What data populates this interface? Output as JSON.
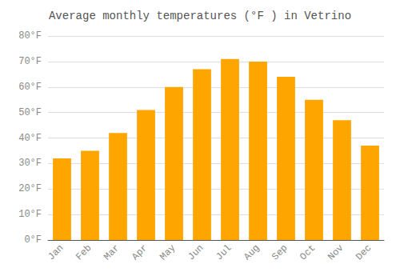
{
  "chart_data": {
    "type": "bar",
    "title": "Average monthly temperatures (°F ) in Vetrino",
    "categories": [
      "Jan",
      "Feb",
      "Mar",
      "Apr",
      "May",
      "Jun",
      "Jul",
      "Aug",
      "Sep",
      "Oct",
      "Nov",
      "Dec"
    ],
    "values": [
      32,
      35,
      42,
      51,
      60,
      67,
      71,
      70,
      64,
      55,
      47,
      37
    ],
    "color": "#FFA500",
    "ylim": [
      0,
      80
    ],
    "yticks": [
      {
        "value": 0,
        "label": "0°F"
      },
      {
        "value": 10,
        "label": "10°F"
      },
      {
        "value": 20,
        "label": "20°F"
      },
      {
        "value": 30,
        "label": "30°F"
      },
      {
        "value": 40,
        "label": "40°F"
      },
      {
        "value": 50,
        "label": "50°F"
      },
      {
        "value": 60,
        "label": "60°F"
      },
      {
        "value": 70,
        "label": "70°F"
      },
      {
        "value": 80,
        "label": "80°F"
      }
    ],
    "grid": true
  }
}
